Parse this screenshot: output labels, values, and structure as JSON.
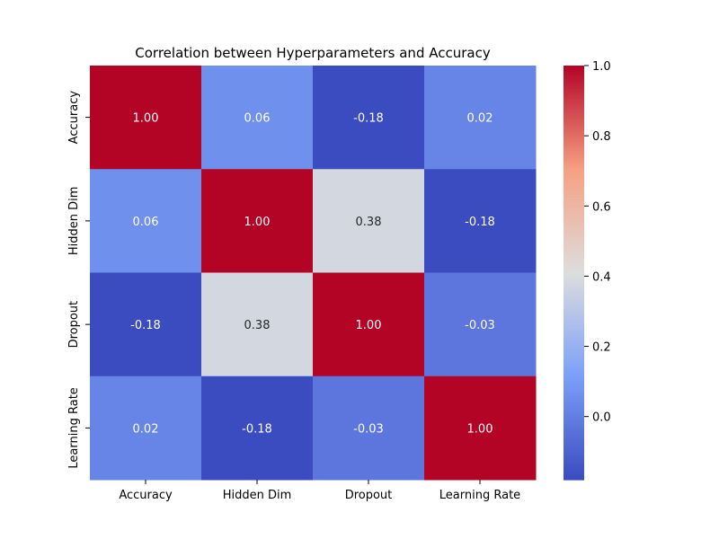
{
  "chart_data": {
    "type": "heatmap",
    "title": "Correlation between Hyperparameters and Accuracy",
    "x_categories": [
      "Accuracy",
      "Hidden Dim",
      "Dropout",
      "Learning Rate"
    ],
    "y_categories": [
      "Accuracy",
      "Hidden Dim",
      "Dropout",
      "Learning Rate"
    ],
    "values": [
      [
        1.0,
        0.06,
        -0.18,
        0.02
      ],
      [
        0.06,
        1.0,
        0.38,
        -0.18
      ],
      [
        -0.18,
        0.38,
        1.0,
        -0.03
      ],
      [
        0.02,
        -0.18,
        -0.03,
        1.0
      ]
    ],
    "value_format": "0.00",
    "colormap": "coolwarm",
    "color_range": [
      -0.18,
      1.0
    ],
    "colorbar_ticks": [
      "0.0",
      "0.2",
      "0.4",
      "0.6",
      "0.8",
      "1.0"
    ],
    "colorbar_tick_values": [
      0.0,
      0.2,
      0.4,
      0.6,
      0.8,
      1.0
    ],
    "grid": false,
    "legend": "colorbar-right"
  }
}
